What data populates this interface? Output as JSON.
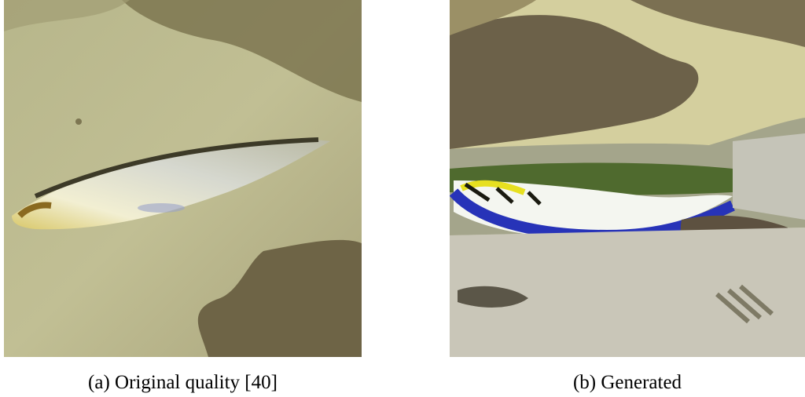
{
  "figures": [
    {
      "caption": "(a) Original quality [40]"
    },
    {
      "caption": "(b) Generated"
    }
  ]
}
